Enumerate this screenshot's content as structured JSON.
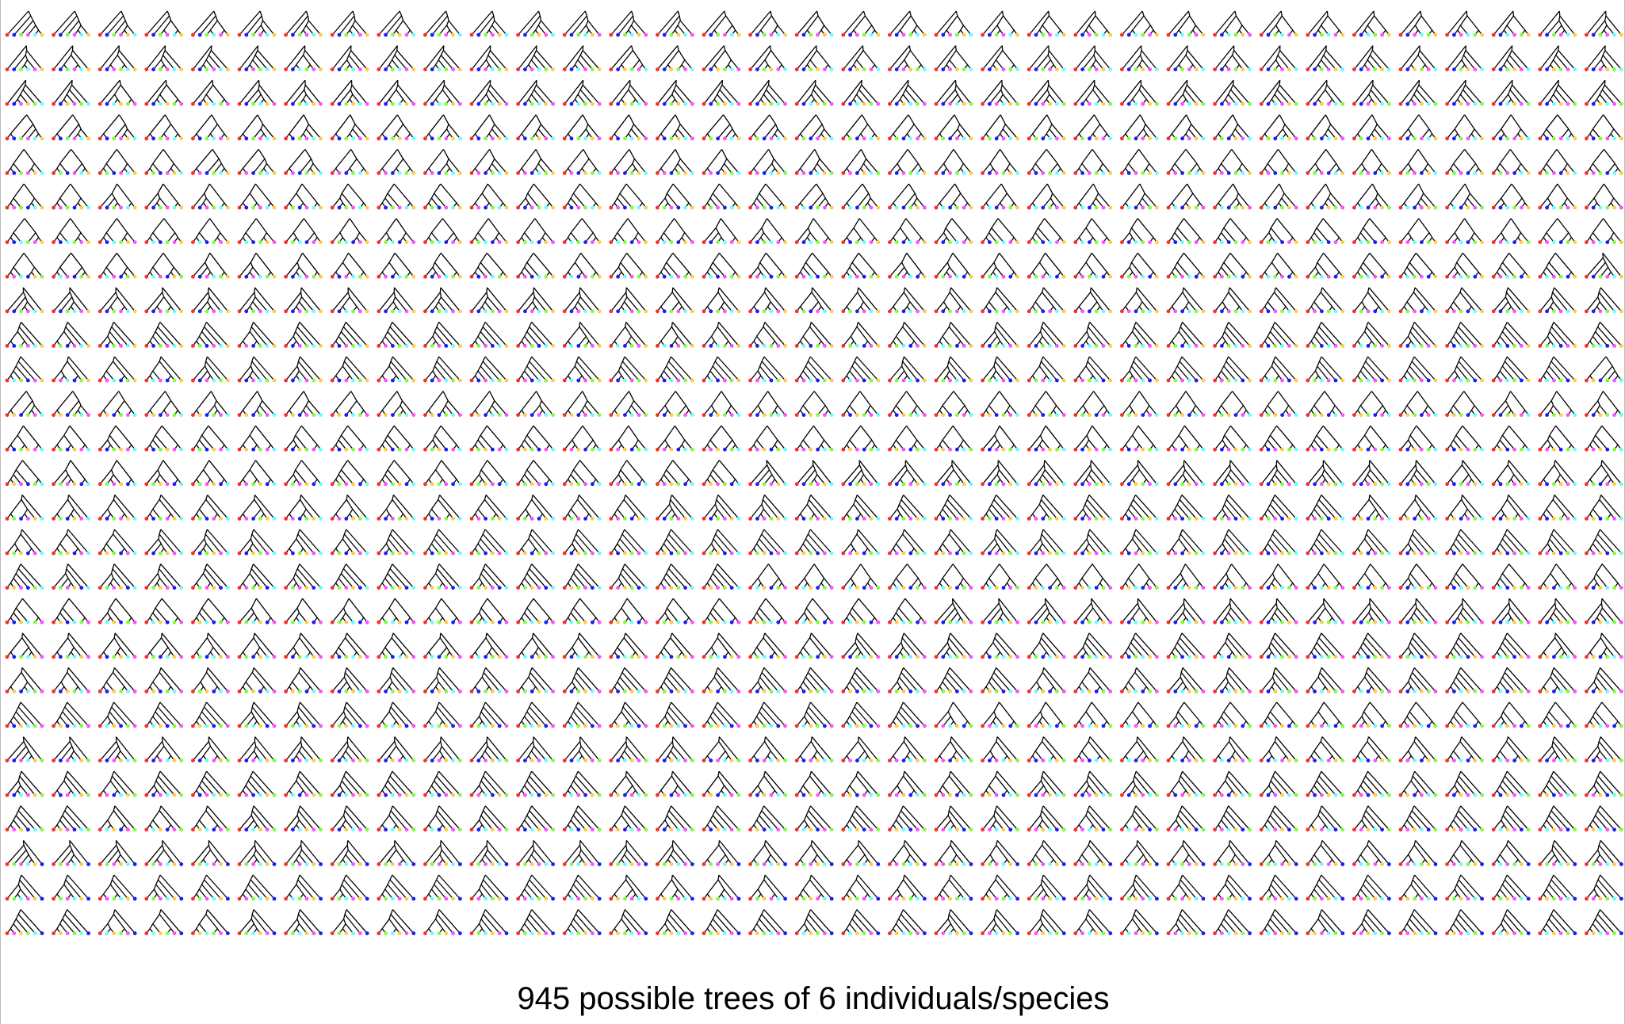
{
  "caption": "945 possible trees of 6 individuals/species",
  "tree_set": {
    "total_trees": 945,
    "leaves_per_tree": 6,
    "columns": 35,
    "rows": 27,
    "leaf_colors": [
      "#ff2a2a",
      "#1a1aff",
      "#7dff3c",
      "#ff4fff",
      "#66ffff",
      "#ffcc44"
    ],
    "edge_color": "#000000"
  }
}
